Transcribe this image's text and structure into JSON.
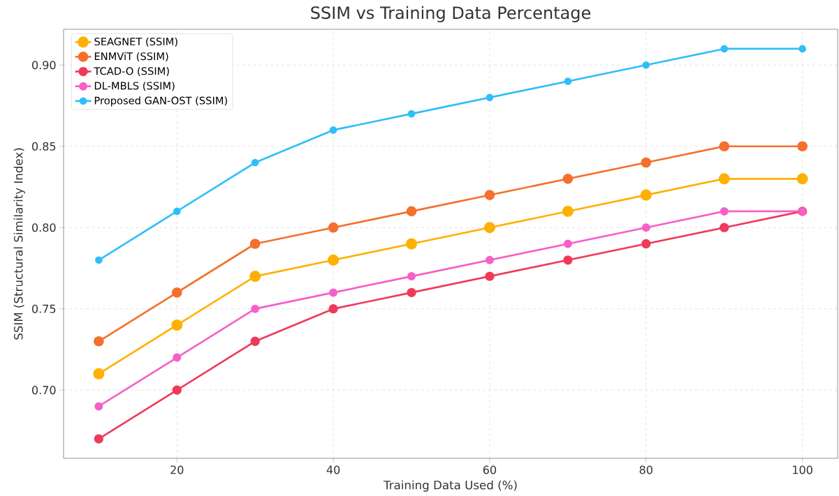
{
  "chart_data": {
    "type": "line",
    "title": "SSIM vs Training Data Percentage",
    "xlabel": "Training Data Used (%)",
    "ylabel": "SSIM (Structural Similarity Index)",
    "x": [
      10,
      20,
      30,
      40,
      50,
      60,
      70,
      80,
      90,
      100
    ],
    "series": [
      {
        "name": "SEAGNET (SSIM)",
        "color": "#ffb000",
        "values": [
          0.71,
          0.74,
          0.77,
          0.78,
          0.79,
          0.8,
          0.81,
          0.82,
          0.83,
          0.83
        ]
      },
      {
        "name": "ENMViT (SSIM)",
        "color": "#f4702c",
        "values": [
          0.73,
          0.76,
          0.79,
          0.8,
          0.81,
          0.82,
          0.83,
          0.84,
          0.85,
          0.85
        ]
      },
      {
        "name": "TCAD-O (SSIM)",
        "color": "#f03a5a",
        "values": [
          0.67,
          0.7,
          0.73,
          0.75,
          0.76,
          0.77,
          0.78,
          0.79,
          0.8,
          0.81
        ]
      },
      {
        "name": "DL-MBLS (SSIM)",
        "color": "#f660c8",
        "values": [
          0.69,
          0.72,
          0.75,
          0.76,
          0.77,
          0.78,
          0.79,
          0.8,
          0.81,
          0.81
        ]
      },
      {
        "name": "Proposed GAN-OST (SSIM)",
        "color": "#30bef8",
        "values": [
          0.78,
          0.81,
          0.84,
          0.86,
          0.87,
          0.88,
          0.89,
          0.9,
          0.91,
          0.91
        ]
      }
    ],
    "xlim": [
      5.5,
      104.5
    ],
    "ylim": [
      0.658,
      0.922
    ],
    "xticks": [
      20,
      40,
      60,
      80,
      100
    ],
    "yticks": [
      {
        "value": 0.7,
        "label": "0.70"
      },
      {
        "value": 0.75,
        "label": "0.75"
      },
      {
        "value": 0.8,
        "label": "0.80"
      },
      {
        "value": 0.85,
        "label": "0.85"
      },
      {
        "value": 0.9,
        "label": "0.90"
      }
    ],
    "grid": true,
    "legend": "top left",
    "marker": "circle",
    "line_style": "solid"
  }
}
